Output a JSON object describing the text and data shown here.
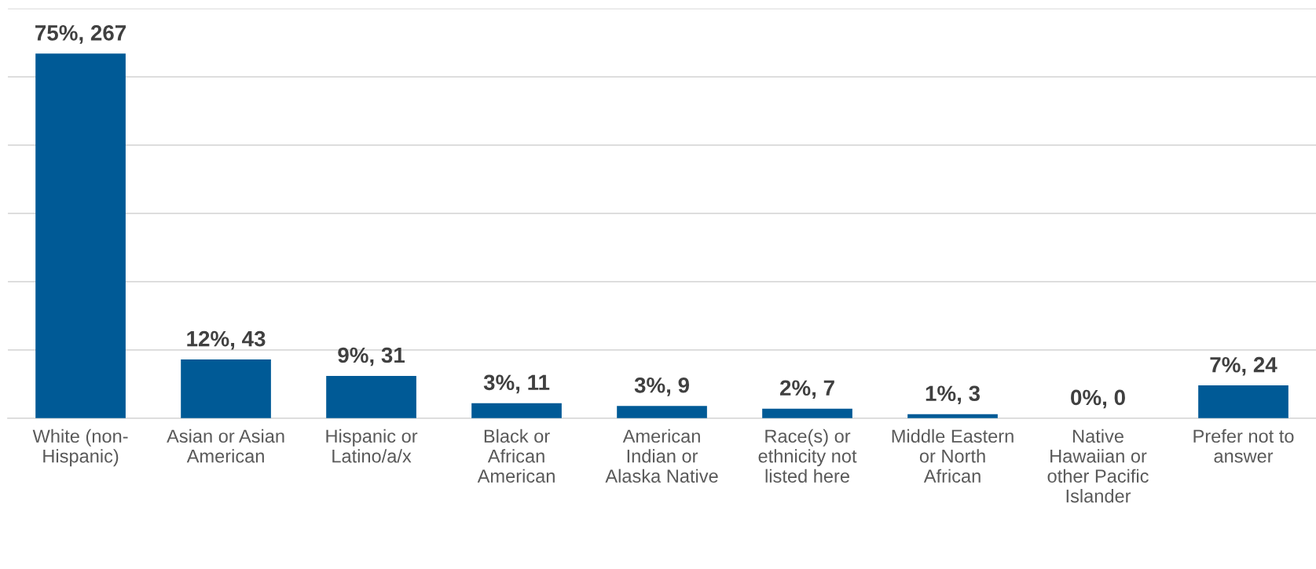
{
  "chart_data": {
    "type": "bar",
    "categories": [
      "White (non-\nHispanic)",
      "Asian or Asian\nAmerican",
      "Hispanic or\nLatino/a/x",
      "Black or\nAfrican\nAmerican",
      "American\nIndian or\nAlaska Native",
      "Race(s) or\nethnicity not\nlisted here",
      "Middle Eastern\nor North\nAfrican",
      "Native\nHawaiian or\nother Pacific\nIslander",
      "Prefer not to\nanswer"
    ],
    "values": [
      267,
      43,
      31,
      11,
      9,
      7,
      3,
      0,
      24
    ],
    "value_labels": [
      "75%, 267",
      "12%, 43",
      "9%, 31",
      "3%, 11",
      "3%, 9",
      "2%, 7",
      "1%, 3",
      "0%, 0",
      "7%, 24"
    ],
    "color": "#005a96",
    "ylim": [
      0,
      300
    ],
    "yticks": [
      {
        "value": 0,
        "label": null
      },
      {
        "value": 50,
        "label": null
      },
      {
        "value": 100,
        "label": null
      },
      {
        "value": 150,
        "label": null
      },
      {
        "value": 200,
        "label": null
      },
      {
        "value": 250,
        "label": null
      },
      {
        "value": 300,
        "label": null
      }
    ],
    "tick_labels": "x",
    "grid": "y",
    "legend": false
  }
}
